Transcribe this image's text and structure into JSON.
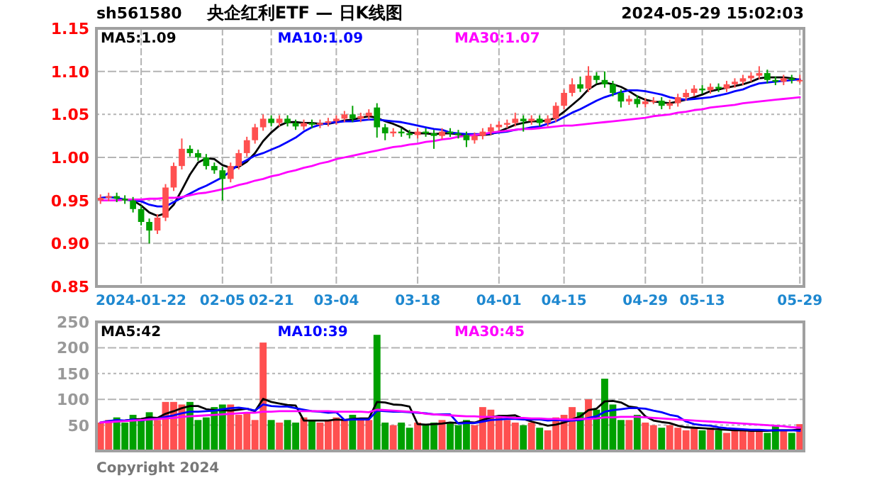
{
  "chart_data": [
    {
      "type": "candlestick",
      "title": "央企红利ETF — 日K线图",
      "annotations": [
        "sh561580",
        "2024-05-29 15:02:03"
      ],
      "categories": [
        null,
        null,
        null,
        null,
        null,
        "2024-01-22",
        null,
        null,
        null,
        null,
        null,
        null,
        null,
        null,
        null,
        "02-05",
        null,
        null,
        null,
        null,
        null,
        "02-21",
        null,
        null,
        null,
        null,
        null,
        null,
        null,
        "03-04",
        null,
        null,
        null,
        null,
        null,
        null,
        null,
        null,
        null,
        "03-18",
        null,
        null,
        null,
        null,
        null,
        null,
        null,
        null,
        null,
        "04-01",
        null,
        null,
        null,
        null,
        null,
        null,
        null,
        "04-15",
        null,
        null,
        null,
        null,
        null,
        null,
        null,
        null,
        null,
        "04-29",
        null,
        null,
        null,
        null,
        null,
        null,
        "05-13",
        null,
        null,
        null,
        null,
        null,
        null,
        null,
        null,
        null,
        null,
        null,
        "05-29"
      ],
      "ohlc": [
        [
          0.95,
          0.957,
          0.946,
          0.953
        ],
        [
          0.953,
          0.959,
          0.949,
          0.955
        ],
        [
          0.955,
          0.959,
          0.948,
          0.952
        ],
        [
          0.952,
          0.956,
          0.946,
          0.95
        ],
        [
          0.95,
          0.954,
          0.936,
          0.94
        ],
        [
          0.94,
          0.944,
          0.921,
          0.925
        ],
        [
          0.925,
          0.929,
          0.9,
          0.915
        ],
        [
          0.915,
          0.934,
          0.911,
          0.93
        ],
        [
          0.93,
          0.969,
          0.926,
          0.965
        ],
        [
          0.965,
          0.994,
          0.961,
          0.99
        ],
        [
          0.99,
          1.022,
          0.986,
          1.01
        ],
        [
          1.01,
          1.014,
          1.001,
          1.005
        ],
        [
          1.005,
          1.009,
          0.996,
          1.0
        ],
        [
          1.0,
          1.004,
          0.986,
          0.99
        ],
        [
          0.99,
          0.994,
          0.981,
          0.985
        ],
        [
          0.985,
          0.989,
          0.95,
          0.975
        ],
        [
          0.975,
          0.994,
          0.971,
          0.99
        ],
        [
          0.99,
          1.009,
          0.986,
          1.005
        ],
        [
          1.005,
          1.024,
          1.001,
          1.02
        ],
        [
          1.02,
          1.039,
          1.016,
          1.035
        ],
        [
          1.035,
          1.05,
          1.031,
          1.045
        ],
        [
          1.045,
          1.049,
          1.036,
          1.04
        ],
        [
          1.04,
          1.049,
          1.036,
          1.045
        ],
        [
          1.045,
          1.049,
          1.036,
          1.04
        ],
        [
          1.04,
          1.044,
          1.032,
          1.036
        ],
        [
          1.036,
          1.044,
          1.032,
          1.04
        ],
        [
          1.04,
          1.044,
          1.034,
          1.038
        ],
        [
          1.038,
          1.044,
          1.034,
          1.04
        ],
        [
          1.04,
          1.046,
          1.036,
          1.042
        ],
        [
          1.042,
          1.049,
          1.038,
          1.045
        ],
        [
          1.045,
          1.054,
          1.041,
          1.05
        ],
        [
          1.05,
          1.06,
          1.041,
          1.045
        ],
        [
          1.045,
          1.052,
          1.041,
          1.048
        ],
        [
          1.048,
          1.056,
          1.044,
          1.052
        ],
        [
          1.058,
          1.063,
          1.023,
          1.035
        ],
        [
          1.035,
          1.039,
          1.02,
          1.028
        ],
        [
          1.028,
          1.034,
          1.024,
          1.03
        ],
        [
          1.03,
          1.034,
          1.024,
          1.028
        ],
        [
          1.028,
          1.032,
          1.022,
          1.026
        ],
        [
          1.026,
          1.034,
          1.022,
          1.03
        ],
        [
          1.03,
          1.034,
          1.024,
          1.028
        ],
        [
          1.028,
          1.032,
          1.01,
          1.025
        ],
        [
          1.025,
          1.034,
          1.021,
          1.03
        ],
        [
          1.03,
          1.034,
          1.024,
          1.028
        ],
        [
          1.028,
          1.032,
          1.022,
          1.026
        ],
        [
          1.026,
          1.03,
          1.012,
          1.02
        ],
        [
          1.02,
          1.029,
          1.016,
          1.025
        ],
        [
          1.025,
          1.034,
          1.021,
          1.03
        ],
        [
          1.03,
          1.039,
          1.026,
          1.035
        ],
        [
          1.035,
          1.042,
          1.031,
          1.038
        ],
        [
          1.038,
          1.044,
          1.034,
          1.04
        ],
        [
          1.04,
          1.052,
          1.036,
          1.045
        ],
        [
          1.045,
          1.049,
          1.03,
          1.042
        ],
        [
          1.042,
          1.049,
          1.038,
          1.045
        ],
        [
          1.045,
          1.049,
          1.036,
          1.04
        ],
        [
          1.04,
          1.049,
          1.036,
          1.045
        ],
        [
          1.045,
          1.064,
          1.041,
          1.06
        ],
        [
          1.06,
          1.079,
          1.056,
          1.075
        ],
        [
          1.075,
          1.092,
          1.071,
          1.085
        ],
        [
          1.085,
          1.094,
          1.076,
          1.08
        ],
        [
          1.08,
          1.106,
          1.076,
          1.095
        ],
        [
          1.095,
          1.099,
          1.086,
          1.09
        ],
        [
          1.09,
          1.1,
          1.081,
          1.085
        ],
        [
          1.085,
          1.089,
          1.071,
          1.075
        ],
        [
          1.075,
          1.079,
          1.058,
          1.065
        ],
        [
          1.065,
          1.072,
          1.061,
          1.068
        ],
        [
          1.068,
          1.072,
          1.058,
          1.062
        ],
        [
          1.062,
          1.069,
          1.058,
          1.065
        ],
        [
          1.065,
          1.07,
          1.062,
          1.066
        ],
        [
          1.066,
          1.07,
          1.056,
          1.06
        ],
        [
          1.06,
          1.067,
          1.056,
          1.063
        ],
        [
          1.063,
          1.074,
          1.059,
          1.07
        ],
        [
          1.07,
          1.079,
          1.066,
          1.075
        ],
        [
          1.075,
          1.084,
          1.071,
          1.08
        ],
        [
          1.08,
          1.084,
          1.074,
          1.078
        ],
        [
          1.078,
          1.086,
          1.074,
          1.082
        ],
        [
          1.082,
          1.086,
          1.076,
          1.08
        ],
        [
          1.08,
          1.089,
          1.076,
          1.085
        ],
        [
          1.085,
          1.092,
          1.081,
          1.088
        ],
        [
          1.088,
          1.096,
          1.084,
          1.092
        ],
        [
          1.092,
          1.099,
          1.088,
          1.095
        ],
        [
          1.095,
          1.106,
          1.091,
          1.098
        ],
        [
          1.098,
          1.102,
          1.086,
          1.09
        ],
        [
          1.09,
          1.094,
          1.084,
          1.088
        ],
        [
          1.088,
          1.096,
          1.084,
          1.092
        ],
        [
          1.092,
          1.096,
          1.086,
          1.09
        ],
        [
          1.09,
          1.096,
          1.086,
          1.09
        ]
      ],
      "colors": [
        "#ff5050",
        "#ff5050",
        "#00a000",
        "#00a000",
        "#00a000",
        "#00a000",
        "#00a000",
        "#ff5050",
        "#ff5050",
        "#ff5050",
        "#ff5050",
        "#00a000",
        "#00a000",
        "#00a000",
        "#00a000",
        "#00a000",
        "#ff5050",
        "#ff5050",
        "#ff5050",
        "#ff5050",
        "#ff5050",
        "#00a000",
        "#ff5050",
        "#00a000",
        "#00a000",
        "#ff5050",
        "#00a000",
        "#ff5050",
        "#ff5050",
        "#ff5050",
        "#ff5050",
        "#00a000",
        "#ff5050",
        "#ff5050",
        "#00a000",
        "#00a000",
        "#ff5050",
        "#00a000",
        "#00a000",
        "#ff5050",
        "#00a000",
        "#00a000",
        "#ff5050",
        "#00a000",
        "#00a000",
        "#00a000",
        "#ff5050",
        "#ff5050",
        "#ff5050",
        "#ff5050",
        "#ff5050",
        "#ff5050",
        "#00a000",
        "#ff5050",
        "#00a000",
        "#ff5050",
        "#ff5050",
        "#ff5050",
        "#ff5050",
        "#00a000",
        "#ff5050",
        "#00a000",
        "#00a000",
        "#00a000",
        "#00a000",
        "#ff5050",
        "#00a000",
        "#ff5050",
        "#ff5050",
        "#00a000",
        "#ff5050",
        "#ff5050",
        "#ff5050",
        "#ff5050",
        "#00a000",
        "#ff5050",
        "#00a000",
        "#ff5050",
        "#ff5050",
        "#ff5050",
        "#ff5050",
        "#ff5050",
        "#00a000",
        "#00a000",
        "#ff5050",
        "#00a000",
        "#ff5050"
      ],
      "series": [
        {
          "name": "MA5:1.09",
          "type": "line",
          "color": "#000000",
          "values": [
            null,
            null,
            null,
            0.951,
            0.95,
            0.944,
            0.936,
            0.932,
            0.935,
            0.945,
            0.962,
            0.98,
            0.994,
            0.999,
            0.998,
            0.991,
            0.988,
            0.989,
            0.995,
            1.005,
            1.019,
            1.029,
            1.037,
            1.041,
            1.041,
            1.04,
            1.04,
            1.039,
            1.039,
            1.041,
            1.043,
            1.044,
            1.046,
            1.048,
            1.046,
            1.042,
            1.039,
            1.035,
            1.029,
            1.028,
            1.028,
            1.027,
            1.028,
            1.028,
            1.027,
            1.026,
            1.026,
            1.026,
            1.027,
            1.03,
            1.034,
            1.038,
            1.04,
            1.042,
            1.042,
            1.043,
            1.046,
            1.053,
            1.061,
            1.069,
            1.079,
            1.085,
            1.087,
            1.085,
            1.082,
            1.077,
            1.071,
            1.067,
            1.065,
            1.064,
            1.063,
            1.065,
            1.067,
            1.07,
            1.073,
            1.077,
            1.079,
            1.081,
            1.083,
            1.085,
            1.088,
            1.092,
            1.093,
            1.093,
            1.093,
            1.092,
            1.09
          ]
        },
        {
          "name": "MA10:1.09",
          "type": "line",
          "color": "#0000ff",
          "values": [
            0.953,
            0.954,
            0.953,
            0.951,
            0.95,
            0.949,
            0.945,
            0.943,
            0.943,
            0.948,
            0.953,
            0.958,
            0.963,
            0.967,
            0.972,
            0.977,
            0.984,
            0.992,
            0.997,
            1.002,
            1.005,
            1.009,
            1.013,
            1.018,
            1.023,
            1.03,
            1.035,
            1.038,
            1.04,
            1.041,
            1.042,
            1.042,
            1.043,
            1.044,
            1.044,
            1.043,
            1.042,
            1.041,
            1.039,
            1.037,
            1.035,
            1.033,
            1.032,
            1.029,
            1.028,
            1.027,
            1.027,
            1.027,
            1.028,
            1.029,
            1.03,
            1.032,
            1.033,
            1.035,
            1.036,
            1.039,
            1.042,
            1.047,
            1.052,
            1.056,
            1.061,
            1.066,
            1.07,
            1.073,
            1.076,
            1.078,
            1.078,
            1.077,
            1.075,
            1.073,
            1.07,
            1.068,
            1.067,
            1.068,
            1.069,
            1.07,
            1.072,
            1.074,
            1.077,
            1.079,
            1.083,
            1.086,
            1.087,
            1.088,
            1.089,
            1.09,
            1.091
          ]
        },
        {
          "name": "MA30:1.07",
          "type": "line",
          "color": "#ff00ff",
          "values": [
            0.95,
            0.95,
            0.95,
            0.951,
            0.951,
            0.951,
            0.952,
            0.952,
            0.953,
            0.953,
            0.954,
            0.956,
            0.958,
            0.959,
            0.961,
            0.963,
            0.965,
            0.968,
            0.97,
            0.973,
            0.975,
            0.978,
            0.98,
            0.983,
            0.985,
            0.988,
            0.99,
            0.993,
            0.995,
            0.998,
            1.0,
            1.002,
            1.004,
            1.006,
            1.008,
            1.01,
            1.012,
            1.013,
            1.015,
            1.016,
            1.018,
            1.019,
            1.021,
            1.022,
            1.024,
            1.025,
            1.026,
            1.027,
            1.029,
            1.03,
            1.031,
            1.032,
            1.033,
            1.033,
            1.034,
            1.035,
            1.036,
            1.037,
            1.037,
            1.038,
            1.039,
            1.04,
            1.041,
            1.042,
            1.043,
            1.044,
            1.045,
            1.046,
            1.048,
            1.049,
            1.05,
            1.052,
            1.053,
            1.055,
            1.056,
            1.058,
            1.059,
            1.06,
            1.061,
            1.063,
            1.064,
            1.065,
            1.066,
            1.067,
            1.068,
            1.069,
            1.07
          ]
        }
      ],
      "ylim": [
        0.85,
        1.15
      ],
      "yticks": [
        {
          "value": 0.85,
          "label": "0.85"
        },
        {
          "value": 0.9,
          "label": "0.90"
        },
        {
          "value": 0.95,
          "label": "0.95"
        },
        {
          "value": 1.0,
          "label": "1.00"
        },
        {
          "value": 1.05,
          "label": "1.05"
        },
        {
          "value": 1.1,
          "label": "1.10"
        },
        {
          "value": 1.15,
          "label": "1.15"
        }
      ],
      "grid": true,
      "legend": "top"
    },
    {
      "type": "bar",
      "annotations": [
        "Copyright 2024"
      ],
      "categories": [
        null,
        null,
        null,
        null,
        null,
        null,
        null,
        null,
        null,
        null,
        null,
        null,
        null,
        null,
        null,
        null,
        null,
        null,
        null,
        null,
        null,
        null,
        null,
        null,
        null,
        null,
        null,
        null,
        null,
        null,
        null,
        null,
        null,
        null,
        null,
        null,
        null,
        null,
        null,
        null,
        null,
        null,
        null,
        null,
        null,
        null,
        null,
        null,
        null,
        null,
        null,
        null,
        null,
        null,
        null,
        null,
        null,
        null,
        null,
        null,
        null,
        null,
        null,
        null,
        null,
        null,
        null,
        null,
        null,
        null,
        null,
        null,
        null,
        null,
        null,
        null,
        null,
        null,
        null,
        null,
        null,
        null,
        null,
        null,
        null,
        null,
        null
      ],
      "values": [
        55,
        60,
        65,
        55,
        70,
        60,
        75,
        60,
        95,
        95,
        90,
        95,
        60,
        65,
        85,
        90,
        90,
        70,
        75,
        60,
        210,
        60,
        55,
        60,
        55,
        65,
        60,
        55,
        60,
        65,
        60,
        70,
        60,
        60,
        225,
        55,
        50,
        55,
        45,
        55,
        50,
        55,
        60,
        55,
        50,
        60,
        50,
        85,
        80,
        65,
        60,
        55,
        50,
        55,
        45,
        40,
        65,
        70,
        85,
        75,
        100,
        80,
        140,
        90,
        60,
        60,
        70,
        55,
        50,
        45,
        50,
        45,
        40,
        45,
        40,
        45,
        40,
        35,
        40,
        40,
        38,
        40,
        35,
        48,
        40,
        35,
        52
      ],
      "colors": [
        "#ff5050",
        "#ff5050",
        "#00a000",
        "#00a000",
        "#00a000",
        "#00a000",
        "#00a000",
        "#ff5050",
        "#ff5050",
        "#ff5050",
        "#ff5050",
        "#00a000",
        "#00a000",
        "#00a000",
        "#00a000",
        "#00a000",
        "#ff5050",
        "#ff5050",
        "#ff5050",
        "#ff5050",
        "#ff5050",
        "#00a000",
        "#ff5050",
        "#00a000",
        "#00a000",
        "#ff5050",
        "#00a000",
        "#ff5050",
        "#ff5050",
        "#ff5050",
        "#ff5050",
        "#00a000",
        "#ff5050",
        "#ff5050",
        "#00a000",
        "#00a000",
        "#ff5050",
        "#00a000",
        "#00a000",
        "#ff5050",
        "#00a000",
        "#00a000",
        "#ff5050",
        "#00a000",
        "#00a000",
        "#00a000",
        "#ff5050",
        "#ff5050",
        "#ff5050",
        "#ff5050",
        "#ff5050",
        "#ff5050",
        "#00a000",
        "#ff5050",
        "#00a000",
        "#ff5050",
        "#ff5050",
        "#ff5050",
        "#ff5050",
        "#00a000",
        "#ff5050",
        "#00a000",
        "#00a000",
        "#00a000",
        "#00a000",
        "#ff5050",
        "#00a000",
        "#ff5050",
        "#ff5050",
        "#00a000",
        "#ff5050",
        "#ff5050",
        "#ff5050",
        "#ff5050",
        "#00a000",
        "#ff5050",
        "#00a000",
        "#ff5050",
        "#ff5050",
        "#ff5050",
        "#ff5050",
        "#ff5050",
        "#00a000",
        "#00a000",
        "#ff5050",
        "#00a000",
        "#ff5050"
      ],
      "series": [
        {
          "name": "MA5:42",
          "type": "line",
          "color": "#000000",
          "values": [
            null,
            null,
            null,
            59,
            61,
            62,
            65,
            64,
            72,
            77,
            83,
            87,
            87,
            81,
            79,
            79,
            78,
            80,
            82,
            77,
            101,
            95,
            92,
            89,
            88,
            59,
            59,
            59,
            59,
            61,
            60,
            62,
            63,
            63,
            95,
            94,
            90,
            89,
            86,
            52,
            51,
            52,
            53,
            55,
            54,
            56,
            55,
            60,
            65,
            68,
            68,
            69,
            62,
            57,
            53,
            49,
            51,
            55,
            61,
            67,
            79,
            82,
            96,
            97,
            94,
            86,
            84,
            67,
            59,
            56,
            54,
            49,
            46,
            45,
            44,
            43,
            42,
            41,
            40,
            40,
            39,
            39,
            39,
            40,
            40,
            40,
            42
          ]
        },
        {
          "name": "MA10:39",
          "type": "line",
          "color": "#0000ff",
          "values": [
            55,
            58,
            60,
            59,
            61,
            59,
            62,
            62,
            66,
            69,
            73,
            76,
            76,
            77,
            78,
            81,
            83,
            84,
            82,
            78,
            90,
            87,
            86,
            86,
            83,
            80,
            77,
            76,
            74,
            75,
            60,
            61,
            61,
            61,
            78,
            77,
            76,
            76,
            75,
            74,
            73,
            71,
            71,
            71,
            53,
            54,
            54,
            57,
            60,
            61,
            62,
            62,
            61,
            61,
            61,
            59,
            60,
            59,
            59,
            60,
            64,
            67,
            76,
            79,
            81,
            83,
            83,
            82,
            78,
            75,
            70,
            67,
            57,
            52,
            50,
            49,
            46,
            44,
            43,
            42,
            41,
            41,
            40,
            40,
            40,
            40,
            39
          ]
        },
        {
          "name": "MA30:45",
          "type": "line",
          "color": "#ff00ff",
          "values": [
            55,
            56,
            57,
            58,
            59,
            60,
            61,
            62,
            63,
            64,
            66,
            67,
            68,
            69,
            70,
            71,
            72,
            73,
            74,
            74,
            76,
            76,
            77,
            77,
            77,
            77,
            77,
            77,
            77,
            76,
            76,
            76,
            76,
            75,
            80,
            79,
            78,
            77,
            76,
            75,
            72,
            71,
            70,
            69,
            68,
            67,
            67,
            66,
            66,
            66,
            65,
            64,
            64,
            63,
            63,
            62,
            62,
            61,
            61,
            62,
            62,
            63,
            65,
            65,
            66,
            66,
            66,
            65,
            64,
            63,
            62,
            61,
            60,
            59,
            58,
            57,
            56,
            55,
            54,
            53,
            52,
            51,
            50,
            49,
            48,
            46,
            45
          ]
        }
      ],
      "ylim": [
        0,
        250
      ],
      "yticks": [
        50,
        100,
        150,
        200,
        250
      ],
      "tick_labels": "y",
      "grid": true,
      "legend": "top"
    }
  ]
}
